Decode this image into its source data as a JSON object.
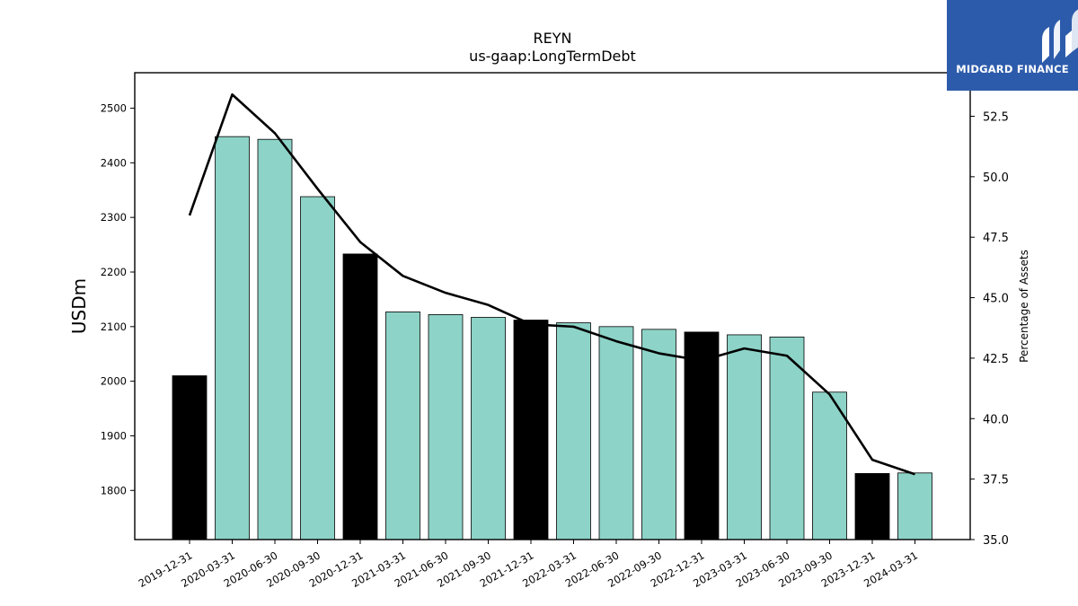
{
  "chart_data": {
    "type": "bar",
    "title": "REYN",
    "subtitle": "us-gaap:LongTermDebt",
    "ylabel": "USDm",
    "y2label": "Percentage of Assets",
    "ylim": [
      1710,
      2565
    ],
    "y2lim": [
      35.0,
      54.3
    ],
    "yticks": [
      1800,
      1900,
      2000,
      2100,
      2200,
      2300,
      2400,
      2500
    ],
    "y2ticks": [
      "35.0",
      "37.5",
      "40.0",
      "42.5",
      "45.0",
      "47.5",
      "50.0",
      "52.5"
    ],
    "categories": [
      "2019-12-31",
      "2020-03-31",
      "2020-06-30",
      "2020-09-30",
      "2020-12-31",
      "2021-03-31",
      "2021-06-30",
      "2021-09-30",
      "2021-12-31",
      "2022-03-31",
      "2022-06-30",
      "2022-09-30",
      "2022-12-31",
      "2023-03-31",
      "2023-06-30",
      "2023-09-30",
      "2023-12-31",
      "2024-03-31"
    ],
    "series": [
      {
        "type": "bar",
        "values": [
          2010,
          2448,
          2443,
          2338,
          2233,
          2127,
          2122,
          2117,
          2112,
          2107,
          2100,
          2095,
          2090,
          2085,
          2081,
          1980,
          1831,
          1832
        ]
      },
      {
        "type": "line",
        "axis": "right",
        "values": [
          48.4,
          53.4,
          51.8,
          49.5,
          47.3,
          45.9,
          45.2,
          44.7,
          43.9,
          43.8,
          43.2,
          42.7,
          42.4,
          42.9,
          42.6,
          41.0,
          38.3,
          37.7
        ]
      }
    ],
    "bar_colors": {
      "annual": "#000000",
      "quarterly": "#8dd3c7"
    },
    "annual_flags": [
      true,
      false,
      false,
      false,
      true,
      false,
      false,
      false,
      true,
      false,
      false,
      false,
      true,
      false,
      false,
      false,
      true,
      false
    ],
    "line_color": "#000000",
    "grid": false
  },
  "logo": {
    "text": "MIDGARD FINANCE",
    "background": "#2d5bab"
  }
}
